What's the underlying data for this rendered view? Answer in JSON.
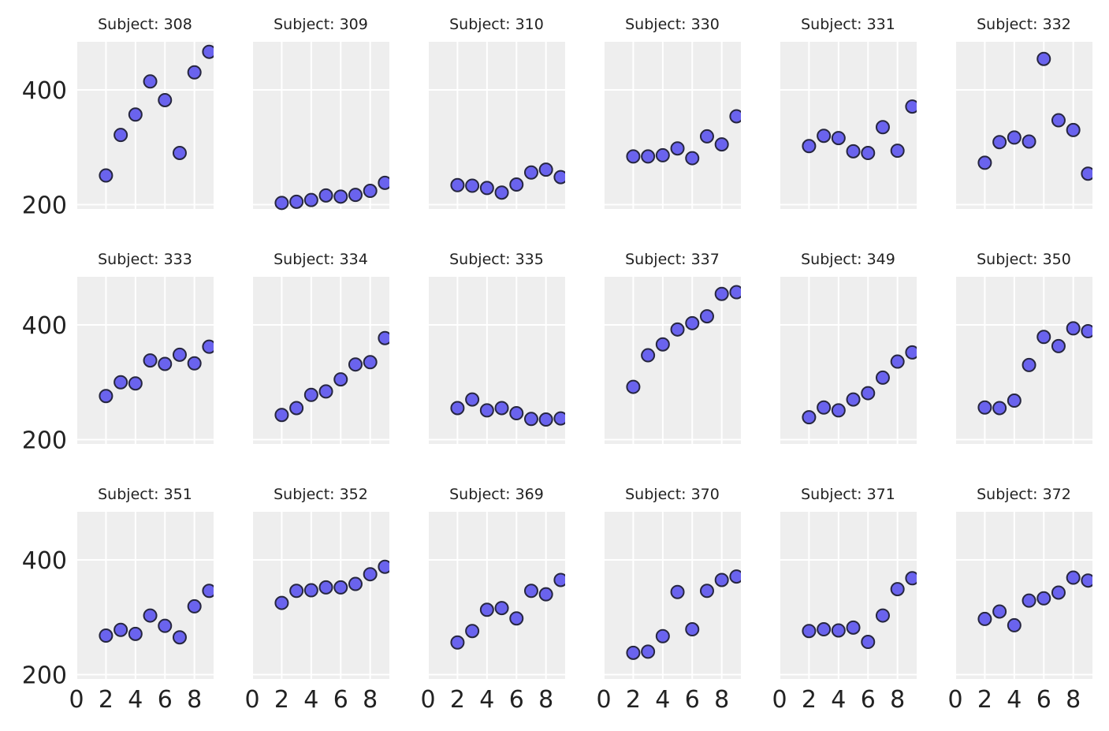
{
  "chart_data": {
    "type": "scatter",
    "layout": "small-multiples 3x6",
    "grid": true,
    "xlim": [
      0,
      9.3
    ],
    "ylim": [
      192,
      484
    ],
    "xticks": [
      0,
      2,
      4,
      6,
      8
    ],
    "yticks": [
      200,
      400
    ],
    "x_tick_labels": [
      "0",
      "2",
      "4",
      "6",
      "8"
    ],
    "y_tick_labels": [
      "200",
      "400"
    ],
    "panels": [
      {
        "title": "Subject: 308",
        "x": [
          2,
          3,
          4,
          5,
          6,
          7,
          8,
          9
        ],
        "y": [
          250.8,
          321.4,
          357.0,
          414.7,
          382.2,
          290.1,
          430.6,
          466.4
        ]
      },
      {
        "title": "Subject: 309",
        "x": [
          2,
          3,
          4,
          5,
          6,
          7,
          8,
          9
        ],
        "y": [
          203.0,
          205.0,
          208.0,
          216.0,
          214.0,
          217.0,
          224.0,
          238.0
        ]
      },
      {
        "title": "Subject: 310",
        "x": [
          2,
          3,
          4,
          5,
          6,
          7,
          8,
          9
        ],
        "y": [
          234.0,
          233.0,
          229.0,
          221.0,
          235.0,
          256.0,
          261.0,
          248.0
        ]
      },
      {
        "title": "Subject: 330",
        "x": [
          2,
          3,
          4,
          5,
          6,
          7,
          8,
          9
        ],
        "y": [
          284.0,
          284.0,
          286.0,
          298.0,
          281.0,
          319.0,
          305.0,
          354.0
        ]
      },
      {
        "title": "Subject: 331",
        "x": [
          2,
          3,
          4,
          5,
          6,
          7,
          8,
          9
        ],
        "y": [
          302.0,
          320.0,
          316.0,
          293.0,
          290.0,
          335.0,
          294.0,
          371.0
        ]
      },
      {
        "title": "Subject: 332",
        "x": [
          2,
          3,
          4,
          5,
          6,
          7,
          8,
          9
        ],
        "y": [
          273.0,
          309.0,
          317.0,
          310.0,
          454.0,
          347.0,
          330.0,
          254.0
        ]
      },
      {
        "title": "Subject: 333",
        "x": [
          2,
          3,
          4,
          5,
          6,
          7,
          8,
          9
        ],
        "y": [
          276.0,
          300.0,
          298.0,
          338.0,
          332.0,
          348.0,
          333.0,
          362.0
        ]
      },
      {
        "title": "Subject: 334",
        "x": [
          2,
          3,
          4,
          5,
          6,
          7,
          8,
          9
        ],
        "y": [
          243.0,
          255.0,
          278.0,
          284.0,
          305.0,
          331.0,
          335.0,
          377.0
        ]
      },
      {
        "title": "Subject: 335",
        "x": [
          2,
          3,
          4,
          5,
          6,
          7,
          8,
          9
        ],
        "y": [
          255.0,
          270.0,
          251.0,
          255.0,
          246.0,
          236.0,
          235.0,
          237.0
        ]
      },
      {
        "title": "Subject: 337",
        "x": [
          2,
          3,
          4,
          5,
          6,
          7,
          8,
          9
        ],
        "y": [
          292.0,
          347.0,
          366.0,
          392.0,
          403.0,
          415.0,
          454.0,
          457.0
        ]
      },
      {
        "title": "Subject: 349",
        "x": [
          2,
          3,
          4,
          5,
          6,
          7,
          8,
          9
        ],
        "y": [
          239.0,
          256.0,
          251.0,
          270.0,
          281.0,
          308.0,
          336.0,
          352.0
        ]
      },
      {
        "title": "Subject: 350",
        "x": [
          2,
          3,
          4,
          5,
          6,
          7,
          8,
          9
        ],
        "y": [
          256.0,
          255.0,
          268.0,
          330.0,
          379.0,
          363.0,
          394.0,
          389.0
        ]
      },
      {
        "title": "Subject: 351",
        "x": [
          2,
          3,
          4,
          5,
          6,
          7,
          8,
          9
        ],
        "y": [
          268.0,
          278.0,
          271.0,
          303.0,
          285.0,
          265.0,
          319.0,
          346.0
        ]
      },
      {
        "title": "Subject: 352",
        "x": [
          2,
          3,
          4,
          5,
          6,
          7,
          8,
          9
        ],
        "y": [
          325.0,
          346.0,
          347.0,
          352.0,
          352.0,
          358.0,
          375.0,
          388.0
        ]
      },
      {
        "title": "Subject: 369",
        "x": [
          2,
          3,
          4,
          5,
          6,
          7,
          8,
          9
        ],
        "y": [
          256.0,
          276.0,
          313.0,
          316.0,
          298.0,
          346.0,
          340.0,
          365.0
        ]
      },
      {
        "title": "Subject: 370",
        "x": [
          2,
          3,
          4,
          5,
          6,
          7,
          8,
          9
        ],
        "y": [
          238.0,
          240.0,
          267.0,
          344.0,
          279.0,
          346.0,
          365.0,
          371.0
        ]
      },
      {
        "title": "Subject: 371",
        "x": [
          2,
          3,
          4,
          5,
          6,
          7,
          8,
          9
        ],
        "y": [
          276.0,
          279.0,
          277.0,
          282.0,
          257.0,
          303.0,
          349.0,
          368.0
        ]
      },
      {
        "title": "Subject: 372",
        "x": [
          2,
          3,
          4,
          5,
          6,
          7,
          8,
          9
        ],
        "y": [
          297.0,
          310.0,
          286.0,
          329.0,
          333.0,
          343.0,
          369.0,
          364.0
        ]
      }
    ]
  },
  "colors": {
    "panel_background": "#eeeeee",
    "grid": "#ffffff",
    "point_fill": "#6a63ee",
    "point_edge": "#26263f",
    "text": "#222222"
  }
}
